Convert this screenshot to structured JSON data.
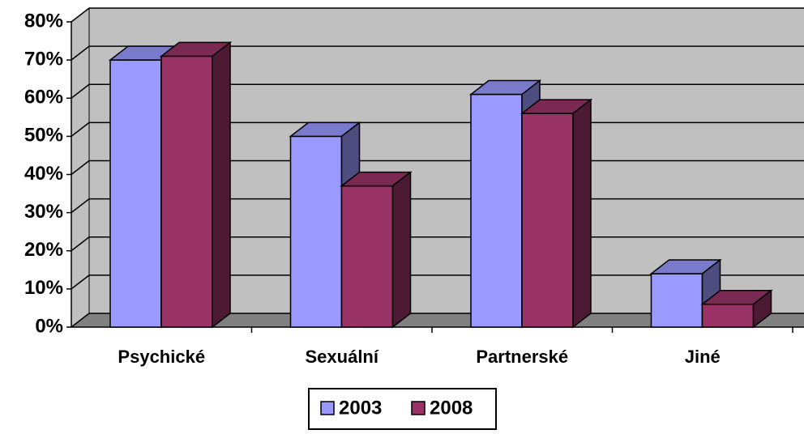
{
  "chart_data": {
    "type": "bar3d",
    "categories": [
      "Psychické",
      "Sexuální",
      "Partnerské",
      "Jiné"
    ],
    "series": [
      {
        "name": "2003",
        "color": "#9999ff",
        "values": [
          70,
          50,
          61,
          14
        ]
      },
      {
        "name": "2008",
        "color": "#993366",
        "values": [
          71,
          37,
          56,
          6
        ]
      }
    ],
    "ylim": [
      0,
      80
    ],
    "yticks": [
      {
        "value": 0,
        "label": "0%"
      },
      {
        "value": 10,
        "label": "10%"
      },
      {
        "value": 20,
        "label": "20%"
      },
      {
        "value": 30,
        "label": "30%"
      },
      {
        "value": 40,
        "label": "40%"
      },
      {
        "value": 50,
        "label": "50%"
      },
      {
        "value": 60,
        "label": "60%"
      },
      {
        "value": 70,
        "label": "70%"
      },
      {
        "value": 80,
        "label": "80%"
      }
    ],
    "grid": true,
    "legend": "bottom"
  }
}
